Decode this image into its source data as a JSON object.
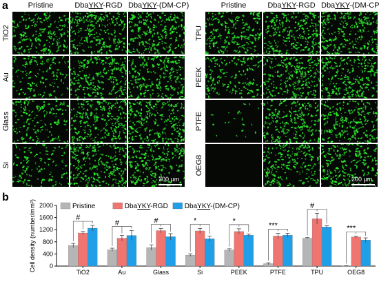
{
  "panel_a": {
    "letter": "a",
    "left": {
      "columns": [
        "Pristine",
        "DbaYKY-RGD",
        "DbaYKY-(DM-CP)"
      ],
      "rows": [
        "TiO2",
        "Au",
        "Glass",
        "Si"
      ],
      "scale_label": "200 µm"
    },
    "right": {
      "columns": [
        "Pristine",
        "DbaYKY-RGD",
        "DbaYKY-(DM-CP)"
      ],
      "rows": [
        "TPU",
        "PEEK",
        "PTFE",
        "OEG8"
      ],
      "scale_label": "200 µm"
    },
    "colors": {
      "cell": "#3ddc3d",
      "background": "#050805"
    },
    "cell_density_levels": {
      "TiO2": [
        0.75,
        0.95,
        0.95
      ],
      "Au": [
        0.55,
        0.9,
        0.95
      ],
      "Glass": [
        0.6,
        0.95,
        0.9
      ],
      "Si": [
        0.45,
        0.95,
        0.85
      ],
      "TPU": [
        0.8,
        0.95,
        0.95
      ],
      "PEEK": [
        0.6,
        0.95,
        0.95
      ],
      "PTFE": [
        0.08,
        0.9,
        0.9
      ],
      "OEG8": [
        0.0,
        0.85,
        0.8
      ]
    }
  },
  "panel_b": {
    "letter": "b",
    "chart_data": {
      "type": "bar",
      "ylabel": "Cell density (number/mm²)",
      "ylim": [
        0,
        2000
      ],
      "yticks": [
        0,
        400,
        800,
        1200,
        1600,
        2000
      ],
      "categories": [
        "TiO2",
        "Au",
        "Glass",
        "Si",
        "PEEK",
        "PTFE",
        "TPU",
        "OEG8"
      ],
      "series": [
        {
          "name": "Pristine",
          "color": "#b5b5b5",
          "values": [
            680,
            540,
            610,
            360,
            530,
            80,
            920,
            10
          ],
          "errors": [
            70,
            50,
            90,
            45,
            40,
            30,
            20,
            5
          ]
        },
        {
          "name": "DbaYKY-RGD",
          "color": "#f07470",
          "values": [
            1090,
            920,
            1170,
            1160,
            1140,
            990,
            1560,
            960
          ],
          "errors": [
            50,
            90,
            70,
            80,
            90,
            90,
            180,
            30
          ]
        },
        {
          "name": "DbaYKY-(DM-CP)",
          "color": "#1e9fe8",
          "values": [
            1250,
            1010,
            970,
            900,
            1020,
            1020,
            1290,
            860
          ],
          "errors": [
            90,
            160,
            100,
            90,
            40,
            60,
            40,
            70
          ]
        }
      ],
      "significance": [
        "#",
        "#",
        "#",
        "*",
        "*",
        "***",
        "#",
        "***"
      ],
      "legend_position": "top-left"
    }
  }
}
